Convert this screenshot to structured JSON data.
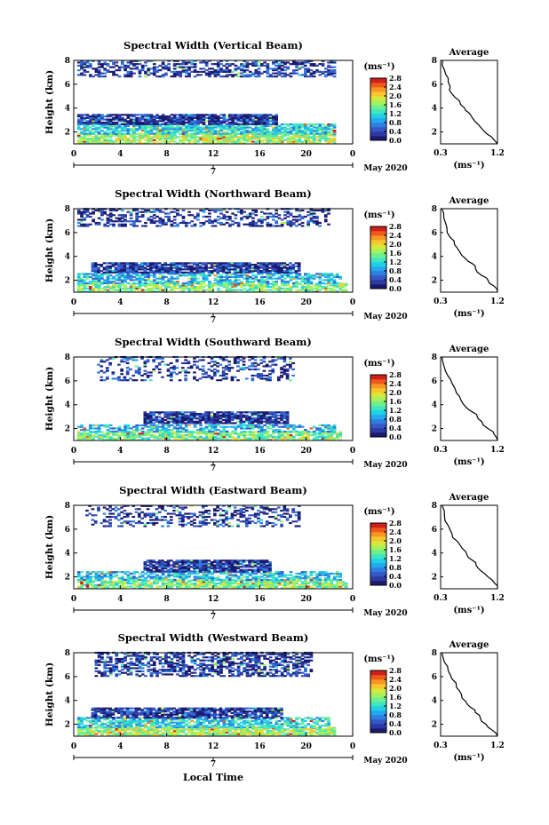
{
  "figure": {
    "xlabel": "Local Time",
    "date_label": "May 2020",
    "cb_unit": "(ms⁻¹)",
    "avg_title": "Average",
    "avg_unit": "(ms⁻¹)",
    "colormap": [
      "#1a1a6e",
      "#2d3aa0",
      "#3557c8",
      "#2f7fe0",
      "#22a9ee",
      "#1fd0e8",
      "#3fe6c0",
      "#6ff08e",
      "#a6f25c",
      "#d8e83c",
      "#f7c62e",
      "#f79623",
      "#ef5a1c",
      "#cf1f1a"
    ]
  },
  "chart_data": [
    {
      "type": "heatmap",
      "title": "Spectral Width (Vertical Beam)",
      "ylabel": "Height (km)",
      "xlim": [
        0,
        24
      ],
      "ylim": [
        1,
        8
      ],
      "xticks": [
        "0",
        "4",
        "8",
        "12",
        "16",
        "20",
        "0"
      ],
      "yticks": [
        "2",
        "4",
        "6",
        "8"
      ],
      "day_label": "7",
      "colorbar_ticks": [
        "0.0",
        "0.4",
        "0.8",
        "1.2",
        "1.6",
        "2.0",
        "2.4",
        "2.8"
      ],
      "regions": [
        {
          "x": [
            0.3,
            22.5
          ],
          "y": [
            6.6,
            8.0
          ],
          "level": 0.1,
          "density": 0.5
        },
        {
          "x": [
            0.3,
            22.5
          ],
          "y": [
            1.0,
            1.8
          ],
          "level": 0.6,
          "density": 0.85
        },
        {
          "x": [
            0.3,
            22.5
          ],
          "y": [
            1.8,
            2.6
          ],
          "level": 0.4,
          "density": 0.8
        },
        {
          "x": [
            0.3,
            17.5
          ],
          "y": [
            2.6,
            3.5
          ],
          "level": 0.1,
          "density": 0.9
        }
      ],
      "avg_profile": {
        "xlim": [
          0.3,
          1.2
        ],
        "xticks": [
          "0.3",
          "1.2"
        ],
        "yticks": [
          "2",
          "4",
          "6",
          "8"
        ],
        "x": [
          0.33,
          0.36,
          0.42,
          0.45,
          0.48,
          0.6,
          0.68,
          0.75,
          0.8,
          0.9,
          1.0,
          1.1,
          1.2
        ],
        "y": [
          8.0,
          7.2,
          6.5,
          5.8,
          5.2,
          4.6,
          4.0,
          3.6,
          3.2,
          2.6,
          2.0,
          1.6,
          1.0
        ]
      }
    },
    {
      "type": "heatmap",
      "title": "Spectral Width (Northward Beam)",
      "ylabel": "Height (km)",
      "xlim": [
        0,
        24
      ],
      "ylim": [
        1,
        8
      ],
      "xticks": [
        "0",
        "4",
        "8",
        "12",
        "16",
        "20",
        "0"
      ],
      "yticks": [
        "2",
        "4",
        "6",
        "8"
      ],
      "day_label": "7",
      "colorbar_ticks": [
        "0.0",
        "0.4",
        "0.8",
        "1.2",
        "1.6",
        "2.0",
        "2.4",
        "2.8"
      ],
      "regions": [
        {
          "x": [
            0.3,
            22.0
          ],
          "y": [
            6.5,
            8.0
          ],
          "level": 0.1,
          "density": 0.4
        },
        {
          "x": [
            0.3,
            23.5
          ],
          "y": [
            1.0,
            1.7
          ],
          "level": 0.55,
          "density": 0.7
        },
        {
          "x": [
            0.3,
            23.0
          ],
          "y": [
            1.7,
            2.5
          ],
          "level": 0.35,
          "density": 0.6
        },
        {
          "x": [
            1.5,
            19.5
          ],
          "y": [
            2.6,
            3.4
          ],
          "level": 0.1,
          "density": 0.85
        }
      ],
      "avg_profile": {
        "xlim": [
          0.3,
          1.2
        ],
        "xticks": [
          "0.3",
          "1.2"
        ],
        "yticks": [
          "2",
          "4",
          "6",
          "8"
        ],
        "x": [
          0.32,
          0.35,
          0.4,
          0.45,
          0.52,
          0.6,
          0.7,
          0.8,
          0.85,
          0.95,
          1.05,
          1.15,
          1.2
        ],
        "y": [
          8.0,
          7.2,
          6.4,
          5.6,
          5.0,
          4.4,
          3.8,
          3.4,
          3.0,
          2.4,
          2.0,
          1.5,
          1.0
        ]
      }
    },
    {
      "type": "heatmap",
      "title": "Spectral Width (Southward Beam)",
      "ylabel": "Height (km)",
      "xlim": [
        0,
        24
      ],
      "ylim": [
        1,
        8
      ],
      "xticks": [
        "0",
        "4",
        "8",
        "12",
        "16",
        "20",
        "0"
      ],
      "yticks": [
        "2",
        "4",
        "6",
        "8"
      ],
      "day_label": "7",
      "colorbar_ticks": [
        "0.0",
        "0.4",
        "0.8",
        "1.2",
        "1.6",
        "2.0",
        "2.4",
        "2.8"
      ],
      "regions": [
        {
          "x": [
            2.0,
            19.0
          ],
          "y": [
            6.0,
            8.0
          ],
          "level": 0.1,
          "density": 0.3
        },
        {
          "x": [
            0.3,
            23.0
          ],
          "y": [
            1.0,
            1.7
          ],
          "level": 0.55,
          "density": 0.75
        },
        {
          "x": [
            0.3,
            22.5
          ],
          "y": [
            1.7,
            2.3
          ],
          "level": 0.35,
          "density": 0.55
        },
        {
          "x": [
            6.0,
            18.5
          ],
          "y": [
            2.4,
            3.4
          ],
          "level": 0.1,
          "density": 0.85
        }
      ],
      "avg_profile": {
        "xlim": [
          0.3,
          1.2
        ],
        "xticks": [
          "0.3",
          "1.2"
        ],
        "yticks": [
          "2",
          "4",
          "6",
          "8"
        ],
        "x": [
          0.32,
          0.36,
          0.42,
          0.48,
          0.55,
          0.62,
          0.7,
          0.8,
          0.88,
          0.95,
          1.05,
          1.15,
          1.2
        ],
        "y": [
          8.0,
          7.1,
          6.4,
          5.8,
          5.0,
          4.4,
          3.8,
          3.4,
          3.0,
          2.6,
          2.0,
          1.5,
          1.0
        ]
      }
    },
    {
      "type": "heatmap",
      "title": "Spectral Width (Eastward Beam)",
      "ylabel": "Height (km)",
      "xlim": [
        0,
        24
      ],
      "ylim": [
        1,
        8
      ],
      "xticks": [
        "0",
        "4",
        "8",
        "12",
        "16",
        "20",
        "0"
      ],
      "yticks": [
        "2",
        "4",
        "6",
        "8"
      ],
      "day_label": "7",
      "colorbar_ticks": [
        "0.0",
        "0.4",
        "0.8",
        "1.2",
        "1.6",
        "2.0",
        "2.4",
        "2.8"
      ],
      "regions": [
        {
          "x": [
            1.0,
            19.5
          ],
          "y": [
            6.2,
            8.0
          ],
          "level": 0.1,
          "density": 0.35
        },
        {
          "x": [
            0.3,
            23.5
          ],
          "y": [
            1.0,
            1.7
          ],
          "level": 0.55,
          "density": 0.8
        },
        {
          "x": [
            0.3,
            23.0
          ],
          "y": [
            1.7,
            2.4
          ],
          "level": 0.35,
          "density": 0.6
        },
        {
          "x": [
            6.0,
            17.0
          ],
          "y": [
            2.4,
            3.4
          ],
          "level": 0.1,
          "density": 0.85
        }
      ],
      "avg_profile": {
        "xlim": [
          0.3,
          1.2
        ],
        "xticks": [
          "0.3",
          "1.2"
        ],
        "yticks": [
          "2",
          "4",
          "6",
          "8"
        ],
        "x": [
          0.32,
          0.36,
          0.42,
          0.48,
          0.56,
          0.64,
          0.72,
          0.8,
          0.86,
          0.94,
          1.05,
          1.15,
          1.2
        ],
        "y": [
          8.0,
          7.1,
          6.3,
          5.6,
          5.0,
          4.4,
          3.8,
          3.4,
          3.0,
          2.5,
          2.0,
          1.5,
          1.0
        ]
      }
    },
    {
      "type": "heatmap",
      "title": "Spectral Width (Westward Beam)",
      "ylabel": "Height (km)",
      "xlim": [
        0,
        24
      ],
      "ylim": [
        1,
        8
      ],
      "xticks": [
        "0",
        "4",
        "8",
        "12",
        "16",
        "20",
        "0"
      ],
      "yticks": [
        "2",
        "4",
        "6",
        "8"
      ],
      "day_label": "7",
      "colorbar_ticks": [
        "0.0",
        "0.4",
        "0.8",
        "1.2",
        "1.6",
        "2.0",
        "2.4",
        "2.8"
      ],
      "regions": [
        {
          "x": [
            1.8,
            20.5
          ],
          "y": [
            6.0,
            8.0
          ],
          "level": 0.1,
          "density": 0.55
        },
        {
          "x": [
            0.3,
            22.5
          ],
          "y": [
            1.0,
            1.7
          ],
          "level": 0.6,
          "density": 0.85
        },
        {
          "x": [
            0.3,
            22.0
          ],
          "y": [
            1.7,
            2.5
          ],
          "level": 0.4,
          "density": 0.7
        },
        {
          "x": [
            1.5,
            18.0
          ],
          "y": [
            2.5,
            3.4
          ],
          "level": 0.1,
          "density": 0.85
        }
      ],
      "avg_profile": {
        "xlim": [
          0.3,
          1.2
        ],
        "xticks": [
          "0.3",
          "1.2"
        ],
        "yticks": [
          "2",
          "4",
          "6",
          "8"
        ],
        "x": [
          0.32,
          0.36,
          0.42,
          0.48,
          0.55,
          0.63,
          0.7,
          0.78,
          0.85,
          0.93,
          1.02,
          1.12,
          1.2
        ],
        "y": [
          8.0,
          7.2,
          6.5,
          5.8,
          5.1,
          4.5,
          3.9,
          3.4,
          3.0,
          2.5,
          2.0,
          1.5,
          1.0
        ]
      }
    }
  ]
}
